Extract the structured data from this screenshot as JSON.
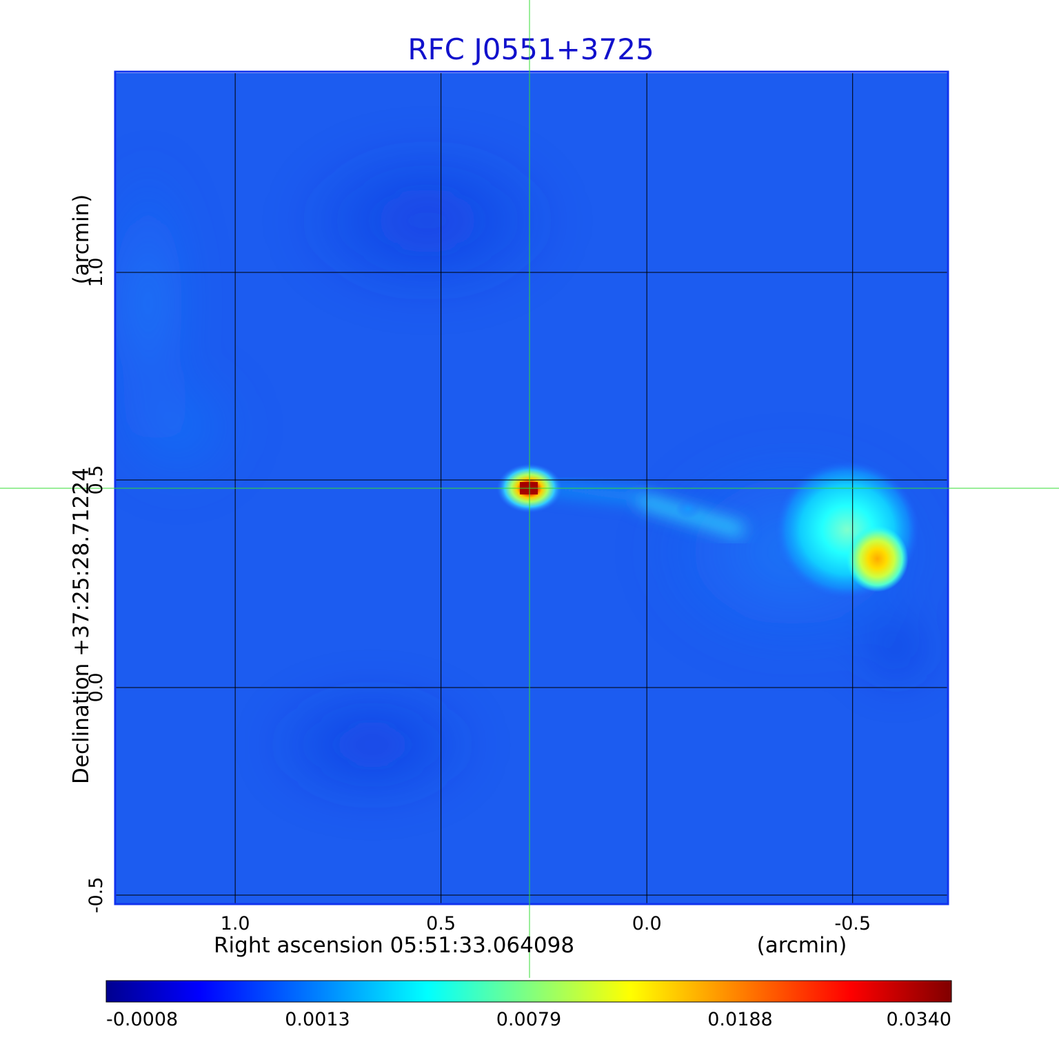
{
  "chart_data": {
    "type": "heatmap",
    "title": "RFC J0551+3725",
    "xlabel": "Right ascension  05:51:33.064098",
    "xunit": "(arcmin)",
    "ylabel": "Declination  +37:25:28.71224",
    "yunit": "(arcmin)",
    "xlim": [
      1.29,
      -0.73
    ],
    "ylim": [
      -0.52,
      1.48
    ],
    "x_ticks": [
      1.0,
      0.5,
      0.0,
      -0.5
    ],
    "x_tick_labels": [
      "1.0",
      "0.5",
      "0.0",
      "-0.5"
    ],
    "y_ticks": [
      -0.5,
      0.0,
      0.5,
      1.0
    ],
    "y_tick_labels": [
      "-0.5",
      "0.0",
      "0.5",
      "1.0"
    ],
    "grid": true,
    "crosshair": {
      "x": 0.285,
      "y": 0.48,
      "color": "#33dd33"
    },
    "sources": [
      {
        "name": "core",
        "x": 0.285,
        "y": 0.48,
        "peak": 0.034
      },
      {
        "name": "hotspot",
        "x": -0.56,
        "y": 0.31,
        "peak": 0.0188
      },
      {
        "name": "lobe",
        "x": -0.47,
        "y": 0.43,
        "peak": 0.0079
      },
      {
        "name": "jet",
        "x": -0.1,
        "y": 0.43,
        "peak": 0.0035
      }
    ],
    "colorbar": {
      "ticks": [
        "-0.0008",
        "0.0013",
        "0.0079",
        "0.0188",
        "0.0340"
      ],
      "colors": [
        "#00008f",
        "#0000ff",
        "#0080ff",
        "#00ffff",
        "#80ff80",
        "#ffff00",
        "#ff8000",
        "#ff0000",
        "#800000"
      ]
    }
  }
}
